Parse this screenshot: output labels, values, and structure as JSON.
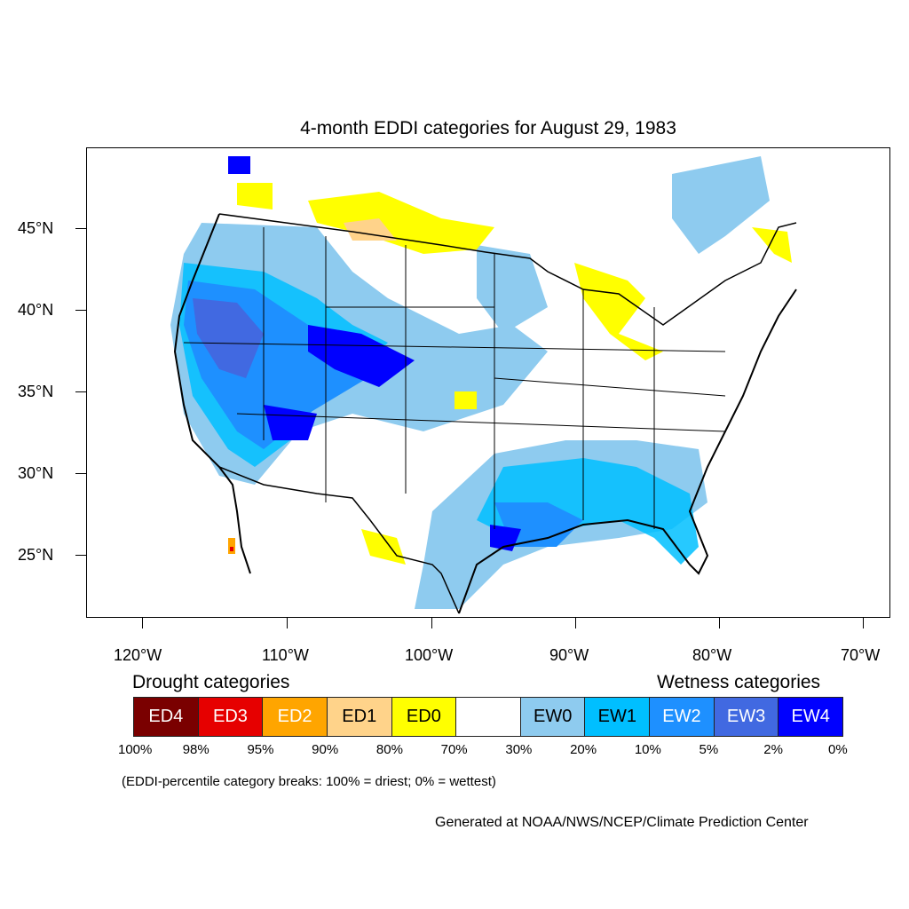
{
  "title": "4-month EDDI categories for August 29, 1983",
  "lat_labels": [
    "45°N",
    "40°N",
    "35°N",
    "30°N",
    "25°N"
  ],
  "lon_labels": [
    "120°W",
    "110°W",
    "100°W",
    "90°W",
    "80°W",
    "70°W"
  ],
  "legend": {
    "drought_heading": "Drought categories",
    "wetness_heading": "Wetness categories",
    "categories": [
      {
        "label": "ED4",
        "color": "#7a0000",
        "text_color": "#ffffff"
      },
      {
        "label": "ED3",
        "color": "#e60000",
        "text_color": "#ffffff"
      },
      {
        "label": "ED2",
        "color": "#ffa500",
        "text_color": "#ffffff"
      },
      {
        "label": "ED1",
        "color": "#ffd38a",
        "text_color": "#000000"
      },
      {
        "label": "ED0",
        "color": "#ffff00",
        "text_color": "#000000"
      },
      {
        "label": "",
        "color": "#ffffff",
        "text_color": "#000000"
      },
      {
        "label": "EW0",
        "color": "#8ecbef",
        "text_color": "#000000"
      },
      {
        "label": "EW1",
        "color": "#00bfff",
        "text_color": "#000000"
      },
      {
        "label": "EW2",
        "color": "#1e90ff",
        "text_color": "#ffffff"
      },
      {
        "label": "EW3",
        "color": "#4169e1",
        "text_color": "#ffffff"
      },
      {
        "label": "EW4",
        "color": "#0000ff",
        "text_color": "#ffffff"
      }
    ],
    "breaks": [
      "100%",
      "98%",
      "95%",
      "90%",
      "80%",
      "70%",
      "30%",
      "20%",
      "10%",
      "5%",
      "2%",
      "0%"
    ]
  },
  "note": "(EDDI-percentile category breaks: 100% = driest; 0% = wettest)",
  "credit": "Generated at NOAA/NWS/NCEP/Climate Prediction Center"
}
